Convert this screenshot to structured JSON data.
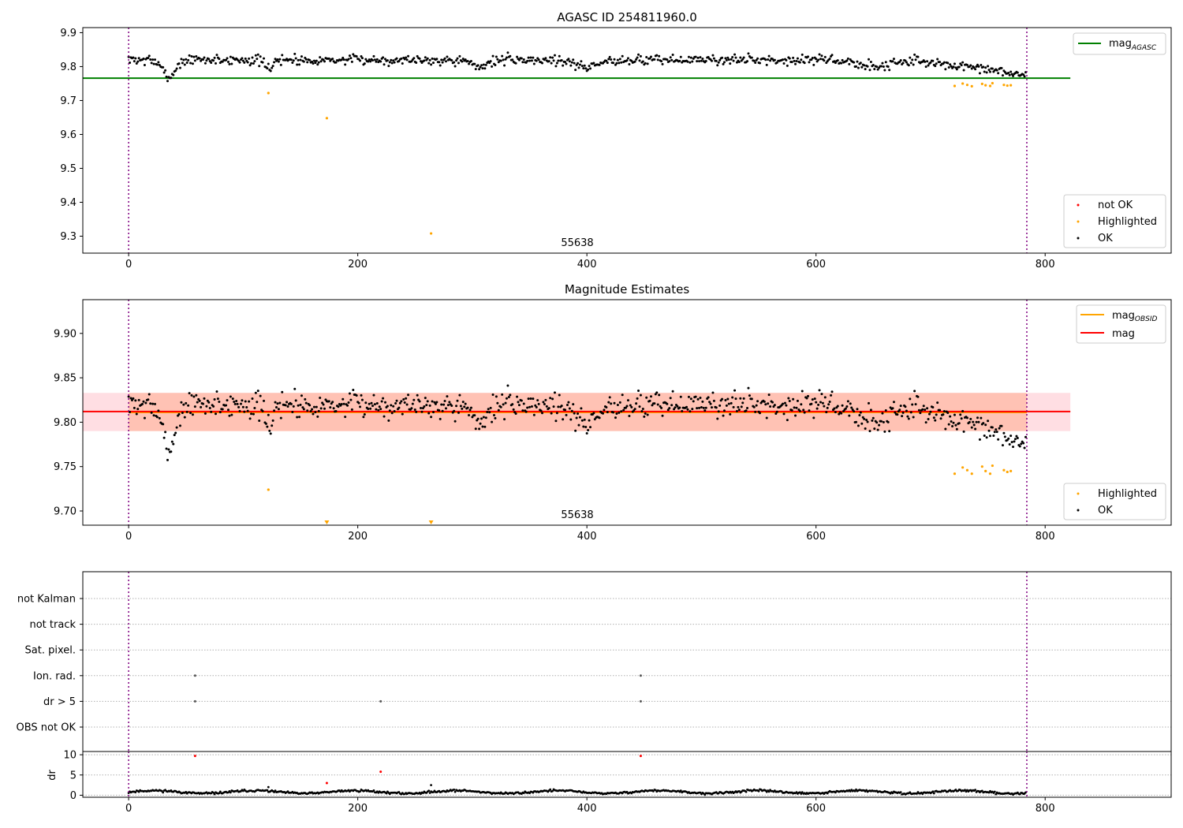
{
  "chart_data": [
    {
      "type": "scatter",
      "title": "AGASC ID 254811960.0",
      "xlabel": "",
      "ylabel": "",
      "xlim": [
        -40,
        910
      ],
      "ylim": [
        9.25,
        9.915
      ],
      "xticks": [
        0,
        200,
        400,
        600,
        800
      ],
      "xtick_labels": [
        "0",
        "200",
        "400",
        "600",
        "800"
      ],
      "yticks": [
        9.3,
        9.4,
        9.5,
        9.6,
        9.7,
        9.8,
        9.9
      ],
      "ytick_labels": [
        "9.3",
        "9.4",
        "9.5",
        "9.6",
        "9.7",
        "9.8",
        "9.9"
      ],
      "obsid_boundaries": [
        0,
        784
      ],
      "obsid_label": {
        "text": "55638",
        "x": 392
      },
      "hlines": [
        {
          "name": "mag_AGASC",
          "y": 9.766,
          "x_range": [
            -40,
            822
          ],
          "color": "#008000"
        }
      ],
      "ok_points": {
        "name": "OK",
        "color": "#000000",
        "n": 784,
        "base": 9.82,
        "noise": 0.014,
        "dips": [
          {
            "x": 35,
            "depth": 0.05,
            "width": 8
          },
          {
            "x": 122,
            "depth": 0.025,
            "width": 5
          },
          {
            "x": 305,
            "depth": 0.02,
            "width": 10
          },
          {
            "x": 400,
            "depth": 0.02,
            "width": 15
          },
          {
            "x": 650,
            "depth": 0.02,
            "width": 20
          }
        ],
        "trend": [
          {
            "from": 680,
            "to": 784,
            "drop": 0.045
          }
        ]
      },
      "highlighted_points": {
        "name": "Highlighted",
        "color": "#ffa500",
        "x": [
          122,
          173,
          264,
          721,
          728,
          732,
          736,
          745,
          748,
          752,
          754,
          764,
          767,
          770
        ],
        "y": [
          9.722,
          9.648,
          9.308,
          9.743,
          9.75,
          9.746,
          9.742,
          9.749,
          9.745,
          9.743,
          9.751,
          9.746,
          9.744,
          9.745
        ]
      },
      "legend": {
        "lines": [
          {
            "label_main": "mag",
            "label_sub": "AGASC",
            "color": "#008000"
          }
        ],
        "points": [
          {
            "label": "not OK",
            "color": "#ff0000"
          },
          {
            "label": "Highlighted",
            "color": "#ffa500"
          },
          {
            "label": "OK",
            "color": "#000000"
          }
        ]
      }
    },
    {
      "type": "scatter",
      "title": "Magnitude Estimates",
      "xlabel": "",
      "ylabel": "",
      "xlim": [
        -40,
        910
      ],
      "ylim": [
        9.684,
        9.938
      ],
      "xticks": [
        0,
        200,
        400,
        600,
        800
      ],
      "xtick_labels": [
        "0",
        "200",
        "400",
        "600",
        "800"
      ],
      "yticks": [
        9.7,
        9.75,
        9.8,
        9.85,
        9.9
      ],
      "ytick_labels": [
        "9.70",
        "9.75",
        "9.80",
        "9.85",
        "9.90"
      ],
      "obsid_boundaries": [
        0,
        784
      ],
      "obsid_label": {
        "text": "55638",
        "x": 392
      },
      "bands": [
        {
          "name": "mag band",
          "y_range": [
            9.79,
            9.833
          ],
          "x_range": [
            -40,
            822
          ],
          "color": "#ffb6c1",
          "opacity": 0.45
        },
        {
          "name": "mag_OBSID band",
          "y_range": [
            9.79,
            9.833
          ],
          "x_range": [
            0,
            784
          ],
          "color": "#ffa07a",
          "opacity": 0.45
        }
      ],
      "hlines": [
        {
          "name": "mag_OBSID",
          "y": 9.811,
          "x_range": [
            0,
            784
          ],
          "color": "#ffa500"
        },
        {
          "name": "mag",
          "y": 9.812,
          "x_range": [
            -40,
            822
          ],
          "color": "#ff0000"
        }
      ],
      "highlighted_points": {
        "name": "Highlighted",
        "color": "#ffa500",
        "x": [
          122,
          721,
          728,
          732,
          736,
          745,
          748,
          752,
          754,
          764,
          767,
          770
        ],
        "y": [
          9.724,
          9.742,
          9.749,
          9.746,
          9.742,
          9.75,
          9.745,
          9.742,
          9.751,
          9.746,
          9.744,
          9.745
        ]
      },
      "offscale_markers": {
        "name": "Highlighted below axis",
        "x": [
          173,
          264
        ],
        "color": "#ffa500"
      },
      "legend": {
        "lines": [
          {
            "label_main": "mag",
            "label_sub": "OBSID",
            "color": "#ffa500"
          },
          {
            "label_main": "mag",
            "label_sub": "",
            "color": "#ff0000"
          }
        ],
        "points": [
          {
            "label": "Highlighted",
            "color": "#ffa500"
          },
          {
            "label": "OK",
            "color": "#000000"
          }
        ]
      }
    },
    {
      "type": "scatter",
      "title": "",
      "xlabel": "",
      "ylabel": "",
      "xlim": [
        -40,
        910
      ],
      "flag_categories": [
        "not Kalman",
        "not track",
        "Sat. pixel.",
        "Ion. rad.",
        "dr > 5",
        "OBS not OK"
      ],
      "flag_points": [
        {
          "flag": "Ion. rad.",
          "x": [
            58,
            447
          ]
        },
        {
          "flag": "dr > 5",
          "x": [
            58,
            220,
            447
          ]
        }
      ],
      "obsid_boundaries": [
        0,
        784
      ]
    },
    {
      "type": "scatter",
      "title": "",
      "xlabel": "",
      "ylabel": "dr",
      "xlim": [
        -40,
        910
      ],
      "ylim": [
        -0.5,
        10.8
      ],
      "yticks": [
        0,
        5,
        10
      ],
      "ytick_labels": [
        "0",
        "5",
        "10"
      ],
      "xticks": [
        0,
        200,
        400,
        600,
        800
      ],
      "xtick_labels": [
        "0",
        "200",
        "400",
        "600",
        "800"
      ],
      "obsid_boundaries": [
        0,
        784
      ],
      "ok_points": {
        "name": "dr OK",
        "color": "#000000",
        "n": 784,
        "base": 0.8,
        "noise": 0.25
      },
      "outliers_black": {
        "x": [
          122,
          264
        ],
        "y": [
          2.0,
          2.5
        ]
      },
      "outliers_red": {
        "x": [
          58,
          173,
          220,
          447
        ],
        "y": [
          9.7,
          3.0,
          5.8,
          9.7
        ],
        "color": "#ff0000"
      }
    }
  ]
}
